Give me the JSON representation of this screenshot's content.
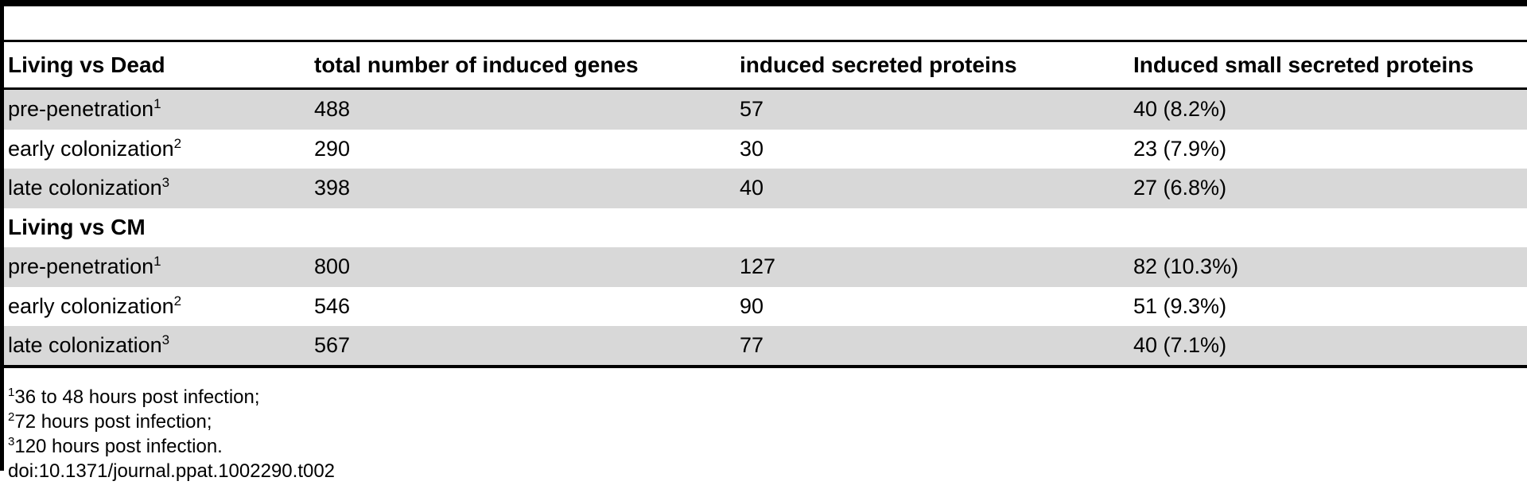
{
  "figure": {
    "group1_header": "Living vs Dead",
    "group2_header": "Living vs CM",
    "columns": [
      "total number of induced genes",
      "induced secreted proteins",
      "Induced small secreted proteins"
    ],
    "rows": [
      {
        "label": "pre-penetration",
        "sup": "1",
        "total_genes": "488",
        "secreted": "57",
        "small_secreted": "40 (8.2%)"
      },
      {
        "label": "early colonization",
        "sup": "2",
        "total_genes": "290",
        "secreted": "30",
        "small_secreted": "23 (7.9%)"
      },
      {
        "label": "late colonization",
        "sup": "3",
        "total_genes": "398",
        "secreted": "40",
        "small_secreted": "27 (6.8%)"
      },
      {
        "label": "pre-penetration",
        "sup": "1",
        "total_genes": "800",
        "secreted": "127",
        "small_secreted": "82 (10.3%)"
      },
      {
        "label": "early colonization",
        "sup": "2",
        "total_genes": "546",
        "secreted": "90",
        "small_secreted": "51 (9.3%)"
      },
      {
        "label": "late colonization",
        "sup": "3",
        "total_genes": "567",
        "secreted": "77",
        "small_secreted": "40 (7.1%)"
      }
    ],
    "footnotes": [
      {
        "marker": "1",
        "text": "36 to 48 hours post infection;"
      },
      {
        "marker": "2",
        "text": "72 hours post infection;"
      },
      {
        "marker": "3",
        "text": "120 hours post infection."
      }
    ],
    "doi": "doi:10.1371/journal.ppat.1002290.t002"
  },
  "colors": {
    "stripe": "#d8d8d8",
    "rule": "#000000",
    "text": "#000000",
    "background": "#ffffff"
  }
}
